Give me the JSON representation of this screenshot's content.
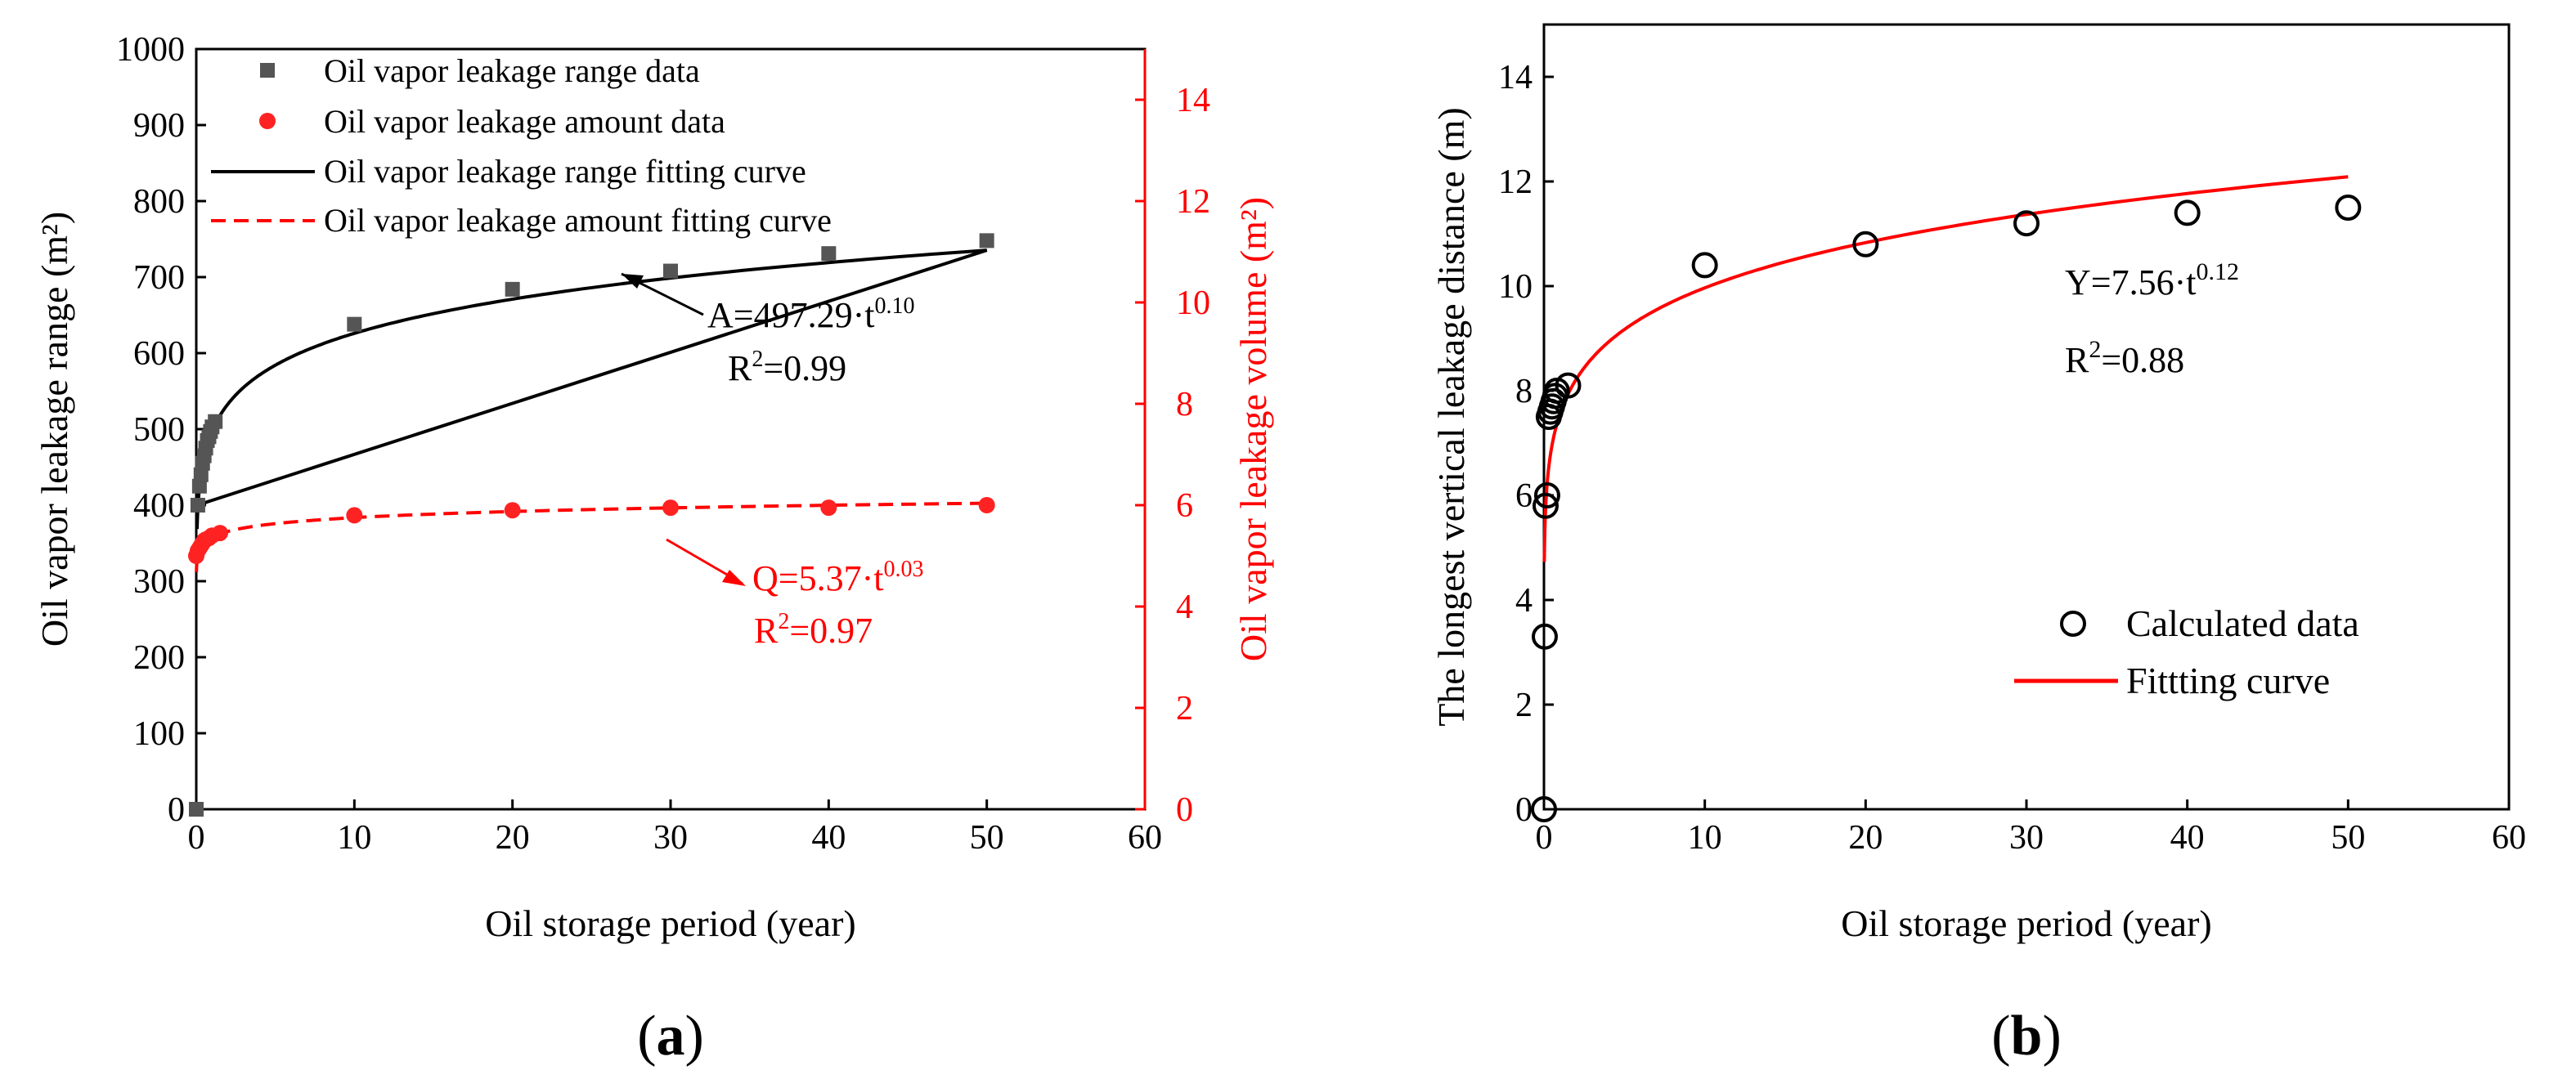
{
  "colors": {
    "black": "#000000",
    "red": "#ff0000",
    "grey": "#555555",
    "ringRed": "#ff2222"
  },
  "chart_data": [
    {
      "id": "a",
      "panel_label": "a",
      "type": "scatter",
      "xlabel": "Oil storage period (year)",
      "ylabel_left": "Oil vapor leakage range (m²)",
      "ylabel_right": "Oil vapor leakage volume (m²)",
      "xlim": [
        0,
        60
      ],
      "xticks": [
        0,
        10,
        20,
        30,
        40,
        50,
        60
      ],
      "ylim_left": [
        0,
        1000
      ],
      "yticks_left": [
        0,
        100,
        200,
        300,
        400,
        500,
        600,
        700,
        800,
        900,
        1000
      ],
      "ylim_right": [
        0,
        15
      ],
      "yticks_right": [
        0,
        2,
        4,
        6,
        8,
        10,
        12,
        14
      ],
      "legend": [
        "Oil vapor leakage range data",
        "Oil vapor leakage amount data",
        "Oil vapor leakage range fitting curve",
        "Oil vapor leakage amount fitting curve"
      ],
      "series": [
        {
          "name": "Oil vapor leakage range data",
          "axis": "left",
          "marker": "square",
          "x": [
            0,
            0.1,
            0.2,
            0.3,
            0.4,
            0.5,
            0.6,
            0.7,
            0.8,
            0.9,
            1.0,
            1.2,
            10,
            20,
            30,
            40,
            50
          ],
          "y": [
            0,
            400,
            425,
            440,
            455,
            465,
            475,
            485,
            490,
            497,
            503,
            510,
            638,
            684,
            708,
            731,
            748
          ]
        },
        {
          "name": "Oil vapor leakage amount data",
          "axis": "right",
          "marker": "circle",
          "x": [
            0,
            0.1,
            0.2,
            0.3,
            0.4,
            0.5,
            0.6,
            0.8,
            1.0,
            1.5,
            10,
            20,
            30,
            40,
            50
          ],
          "y": [
            5.0,
            5.1,
            5.15,
            5.2,
            5.25,
            5.3,
            5.32,
            5.35,
            5.4,
            5.45,
            5.8,
            5.9,
            5.95,
            5.95,
            6.0
          ]
        },
        {
          "name": "Oil vapor leakage range fitting curve",
          "axis": "left",
          "line": "solid",
          "coef": 497.29,
          "exp": 0.1,
          "xrange": [
            0.05,
            50
          ]
        },
        {
          "name": "Oil vapor leakage amount fitting curve",
          "axis": "right",
          "line": "dashed",
          "coef": 5.37,
          "exp": 0.03,
          "xrange": [
            0.01,
            50
          ]
        }
      ],
      "annotations": {
        "range_eq_lhs": "A=497.29·t",
        "range_eq_exp": "0.10",
        "range_r2_prefix": "R",
        "range_r2_sup": "2",
        "range_r2_val": "=0.99",
        "amount_eq_lhs": "Q=5.37·t",
        "amount_eq_exp": "0.03",
        "amount_r2_prefix": "R",
        "amount_r2_sup": "2",
        "amount_r2_val": "=0.97"
      }
    },
    {
      "id": "b",
      "panel_label": "b",
      "type": "scatter",
      "xlabel": "Oil storage period (year)",
      "ylabel": "The longest vertical leakage distance (m)",
      "xlim": [
        0,
        60
      ],
      "xticks": [
        0,
        10,
        20,
        30,
        40,
        50,
        60
      ],
      "ylim": [
        0,
        15
      ],
      "yticks": [
        0,
        2,
        4,
        6,
        8,
        10,
        12,
        14
      ],
      "legend": [
        "Calculated data",
        "Fittting curve"
      ],
      "series": [
        {
          "name": "Calculated data",
          "marker": "open-circle",
          "x": [
            0,
            0.05,
            0.1,
            0.2,
            0.3,
            0.4,
            0.5,
            0.6,
            0.7,
            0.8,
            1.5,
            10,
            20,
            30,
            40,
            50
          ],
          "y": [
            0,
            3.3,
            5.8,
            6.0,
            7.5,
            7.6,
            7.7,
            7.8,
            7.9,
            8.0,
            8.1,
            10.4,
            10.8,
            11.2,
            11.4,
            11.5
          ]
        },
        {
          "name": "Fittting curve",
          "line": "solid",
          "coef": 7.56,
          "exp": 0.12,
          "xrange": [
            0.02,
            50
          ]
        }
      ],
      "annotations": {
        "eq_lhs": "Y=7.56·t",
        "eq_exp": "0.12",
        "r2_prefix": "R",
        "r2_sup": "2",
        "r2_val": "=0.88"
      }
    }
  ]
}
